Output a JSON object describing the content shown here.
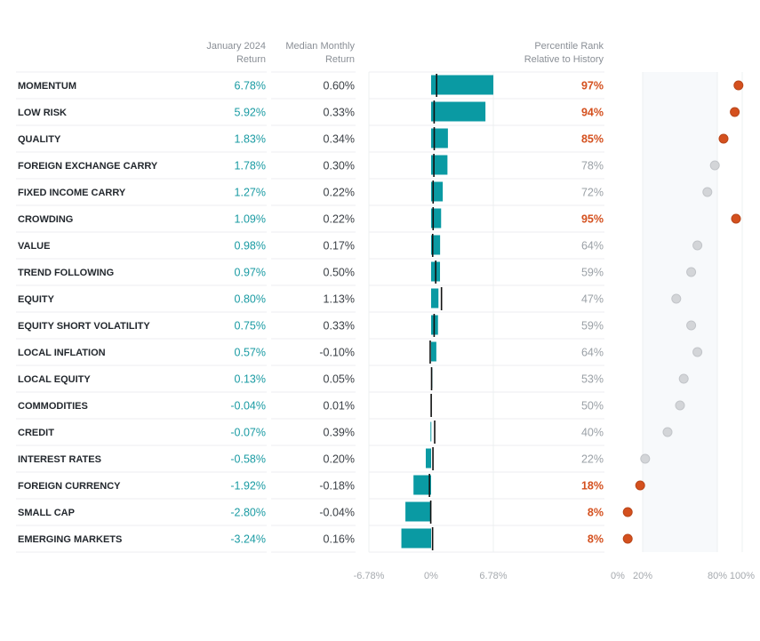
{
  "headers": {
    "jan_line1": "January 2024",
    "jan_line2": "Return",
    "median_line1": "Median Monthly",
    "median_line2": "Return",
    "pct_line1": "Percentile Rank",
    "pct_line2": "Relative to History"
  },
  "colors": {
    "bar": "#0a9aa3",
    "jan_text": "#1a9ba3",
    "median_text": "#3a3f45",
    "highlight": "#d4501e",
    "neutral_text": "#9aa0a6",
    "neutral_dot": "#d3d5d8",
    "median_tick": "#111111"
  },
  "chart_data": {
    "type": "bar",
    "title": "",
    "xlabel": "",
    "ylabel": "",
    "categories": [
      "MOMENTUM",
      "LOW RISK",
      "QUALITY",
      "FOREIGN EXCHANGE CARRY",
      "FIXED INCOME CARRY",
      "CROWDING",
      "VALUE",
      "TREND FOLLOWING",
      "EQUITY",
      "EQUITY SHORT VOLATILITY",
      "LOCAL INFLATION",
      "LOCAL EQUITY",
      "COMMODITIES",
      "CREDIT",
      "INTEREST RATES",
      "FOREIGN CURRENCY",
      "SMALL CAP",
      "EMERGING MARKETS"
    ],
    "series": [
      {
        "name": "January 2024 Return",
        "values": [
          6.78,
          5.92,
          1.83,
          1.78,
          1.27,
          1.09,
          0.98,
          0.97,
          0.8,
          0.75,
          0.57,
          0.13,
          -0.04,
          -0.07,
          -0.58,
          -1.92,
          -2.8,
          -3.24
        ]
      },
      {
        "name": "Median Monthly Return",
        "values": [
          0.6,
          0.33,
          0.34,
          0.3,
          0.22,
          0.22,
          0.17,
          0.5,
          1.13,
          0.33,
          -0.1,
          0.05,
          0.01,
          0.39,
          0.2,
          -0.18,
          -0.04,
          0.16
        ]
      },
      {
        "name": "Percentile Rank Relative to History",
        "values": [
          97,
          94,
          85,
          78,
          72,
          95,
          64,
          59,
          47,
          59,
          64,
          53,
          50,
          40,
          22,
          18,
          8,
          8
        ]
      }
    ],
    "jan_labels": [
      "6.78%",
      "5.92%",
      "1.83%",
      "1.78%",
      "1.27%",
      "1.09%",
      "0.98%",
      "0.97%",
      "0.80%",
      "0.75%",
      "0.57%",
      "0.13%",
      "-0.04%",
      "-0.07%",
      "-0.58%",
      "-1.92%",
      "-2.80%",
      "-3.24%"
    ],
    "median_labels": [
      "0.60%",
      "0.33%",
      "0.34%",
      "0.30%",
      "0.22%",
      "0.22%",
      "0.17%",
      "0.50%",
      "1.13%",
      "0.33%",
      "-0.10%",
      "0.05%",
      "0.01%",
      "0.39%",
      "0.20%",
      "-0.18%",
      "-0.04%",
      "0.16%"
    ],
    "pct_labels": [
      "97%",
      "94%",
      "85%",
      "78%",
      "72%",
      "95%",
      "64%",
      "59%",
      "47%",
      "59%",
      "64%",
      "53%",
      "50%",
      "40%",
      "22%",
      "18%",
      "8%",
      "8%"
    ],
    "highlighted": [
      true,
      true,
      true,
      false,
      false,
      true,
      false,
      false,
      false,
      false,
      false,
      false,
      false,
      false,
      false,
      true,
      true,
      true
    ],
    "bar_xlim": [
      -6.78,
      6.78
    ],
    "bar_ticks": [
      "-6.78%",
      "0%",
      "6.78%"
    ],
    "pct_xlim": [
      0,
      100
    ],
    "pct_ticks": [
      "0%",
      "20%",
      "80%",
      "100%"
    ],
    "pct_band": [
      20,
      80
    ],
    "grid": true
  }
}
